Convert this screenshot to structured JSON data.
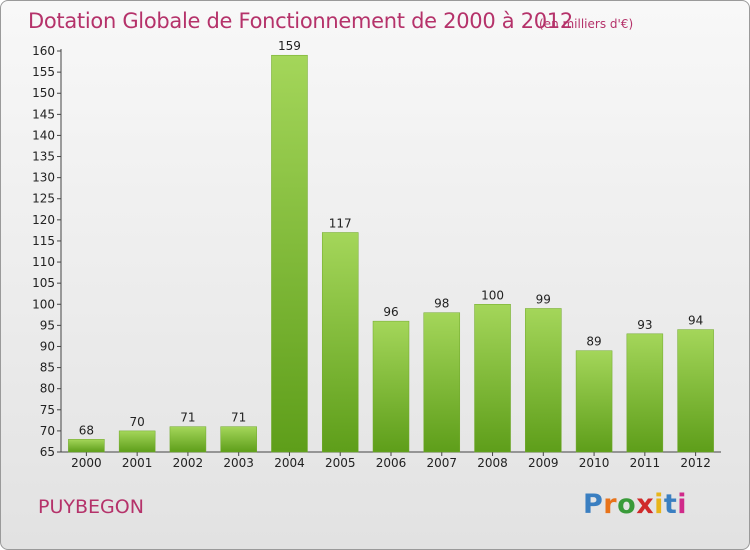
{
  "header": {
    "title": "Dotation Globale de Fonctionnement de 2000 à 2012",
    "subtitle": "(en milliers d'€)"
  },
  "footer": {
    "commune": "PUYBEGON",
    "logo_letters": [
      "P",
      "r",
      "o",
      "x",
      "i",
      "t",
      "i"
    ],
    "logo_colors": [
      "#3a7fc1",
      "#e8731a",
      "#3a9b3a",
      "#d02a2a",
      "#e8b51a",
      "#3a7fc1",
      "#d02a8a"
    ]
  },
  "colors": {
    "bar_top": "#a4d65a",
    "bar_bottom": "#5e9e1a",
    "text": "#222222",
    "accent": "#b5326a"
  },
  "chart_data": {
    "type": "bar",
    "title": "Dotation Globale de Fonctionnement de 2000 à 2012",
    "subtitle": "(en milliers d'€)",
    "categories": [
      "2000",
      "2001",
      "2002",
      "2003",
      "2004",
      "2005",
      "2006",
      "2007",
      "2008",
      "2009",
      "2010",
      "2011",
      "2012"
    ],
    "values": [
      68,
      70,
      71,
      71,
      159,
      117,
      96,
      98,
      100,
      99,
      89,
      93,
      94
    ],
    "ylim": [
      65,
      160
    ],
    "yticks": [
      65,
      70,
      75,
      80,
      85,
      90,
      95,
      100,
      105,
      110,
      115,
      120,
      125,
      130,
      135,
      140,
      145,
      150,
      155,
      160
    ],
    "grid": false,
    "legend": "none"
  }
}
